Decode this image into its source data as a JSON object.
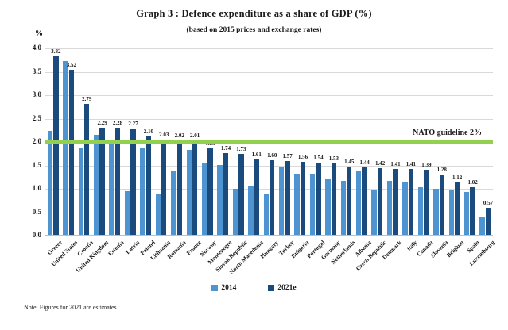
{
  "chart_data": {
    "type": "bar",
    "title": "Graph 3 : Defence expenditure as a share of GDP (%)",
    "subtitle": "(based on 2015 prices and exchange rates)",
    "y_unit": "%",
    "ylim": [
      0,
      4.0
    ],
    "ytick_step": 0.5,
    "grid": true,
    "legend_position": "bottom",
    "guideline": {
      "value": 2.0,
      "label": "NATO guideline 2%",
      "color": "#92D050"
    },
    "categories": [
      "Greece",
      "United States",
      "Croatia",
      "United Kingdom",
      "Estonia",
      "Latvia",
      "Poland",
      "Lithuania",
      "Romania",
      "France",
      "Norway",
      "Montenegro",
      "Slovak Republic",
      "North Macedonia",
      "Hungary",
      "Turkey",
      "Bulgaria",
      "Portugal",
      "Germany",
      "Netherlands",
      "Albania",
      "Czech Republic",
      "Denmark",
      "Italy",
      "Canada",
      "Slovenia",
      "Belgium",
      "Spain",
      "Luxembourg"
    ],
    "series": [
      {
        "name": "2014",
        "color": "#4D94D0",
        "data_labels": false,
        "values": [
          2.22,
          3.71,
          1.84,
          2.14,
          1.93,
          0.94,
          1.85,
          0.88,
          1.35,
          1.82,
          1.55,
          1.5,
          0.99,
          1.05,
          0.86,
          1.45,
          1.31,
          1.31,
          1.18,
          1.15,
          1.35,
          0.95,
          1.15,
          1.14,
          1.01,
          0.98,
          0.97,
          0.92,
          0.38
        ]
      },
      {
        "name": "2021e",
        "color": "#1B4A7C",
        "data_labels": true,
        "values": [
          3.82,
          3.52,
          2.79,
          2.29,
          2.28,
          2.27,
          2.1,
          2.03,
          2.02,
          2.01,
          1.85,
          1.74,
          1.73,
          1.61,
          1.6,
          1.57,
          1.56,
          1.54,
          1.53,
          1.45,
          1.44,
          1.42,
          1.41,
          1.41,
          1.39,
          1.28,
          1.12,
          1.02,
          0.57
        ]
      }
    ],
    "footnote": "Note: Figures for 2021 are estimates."
  }
}
